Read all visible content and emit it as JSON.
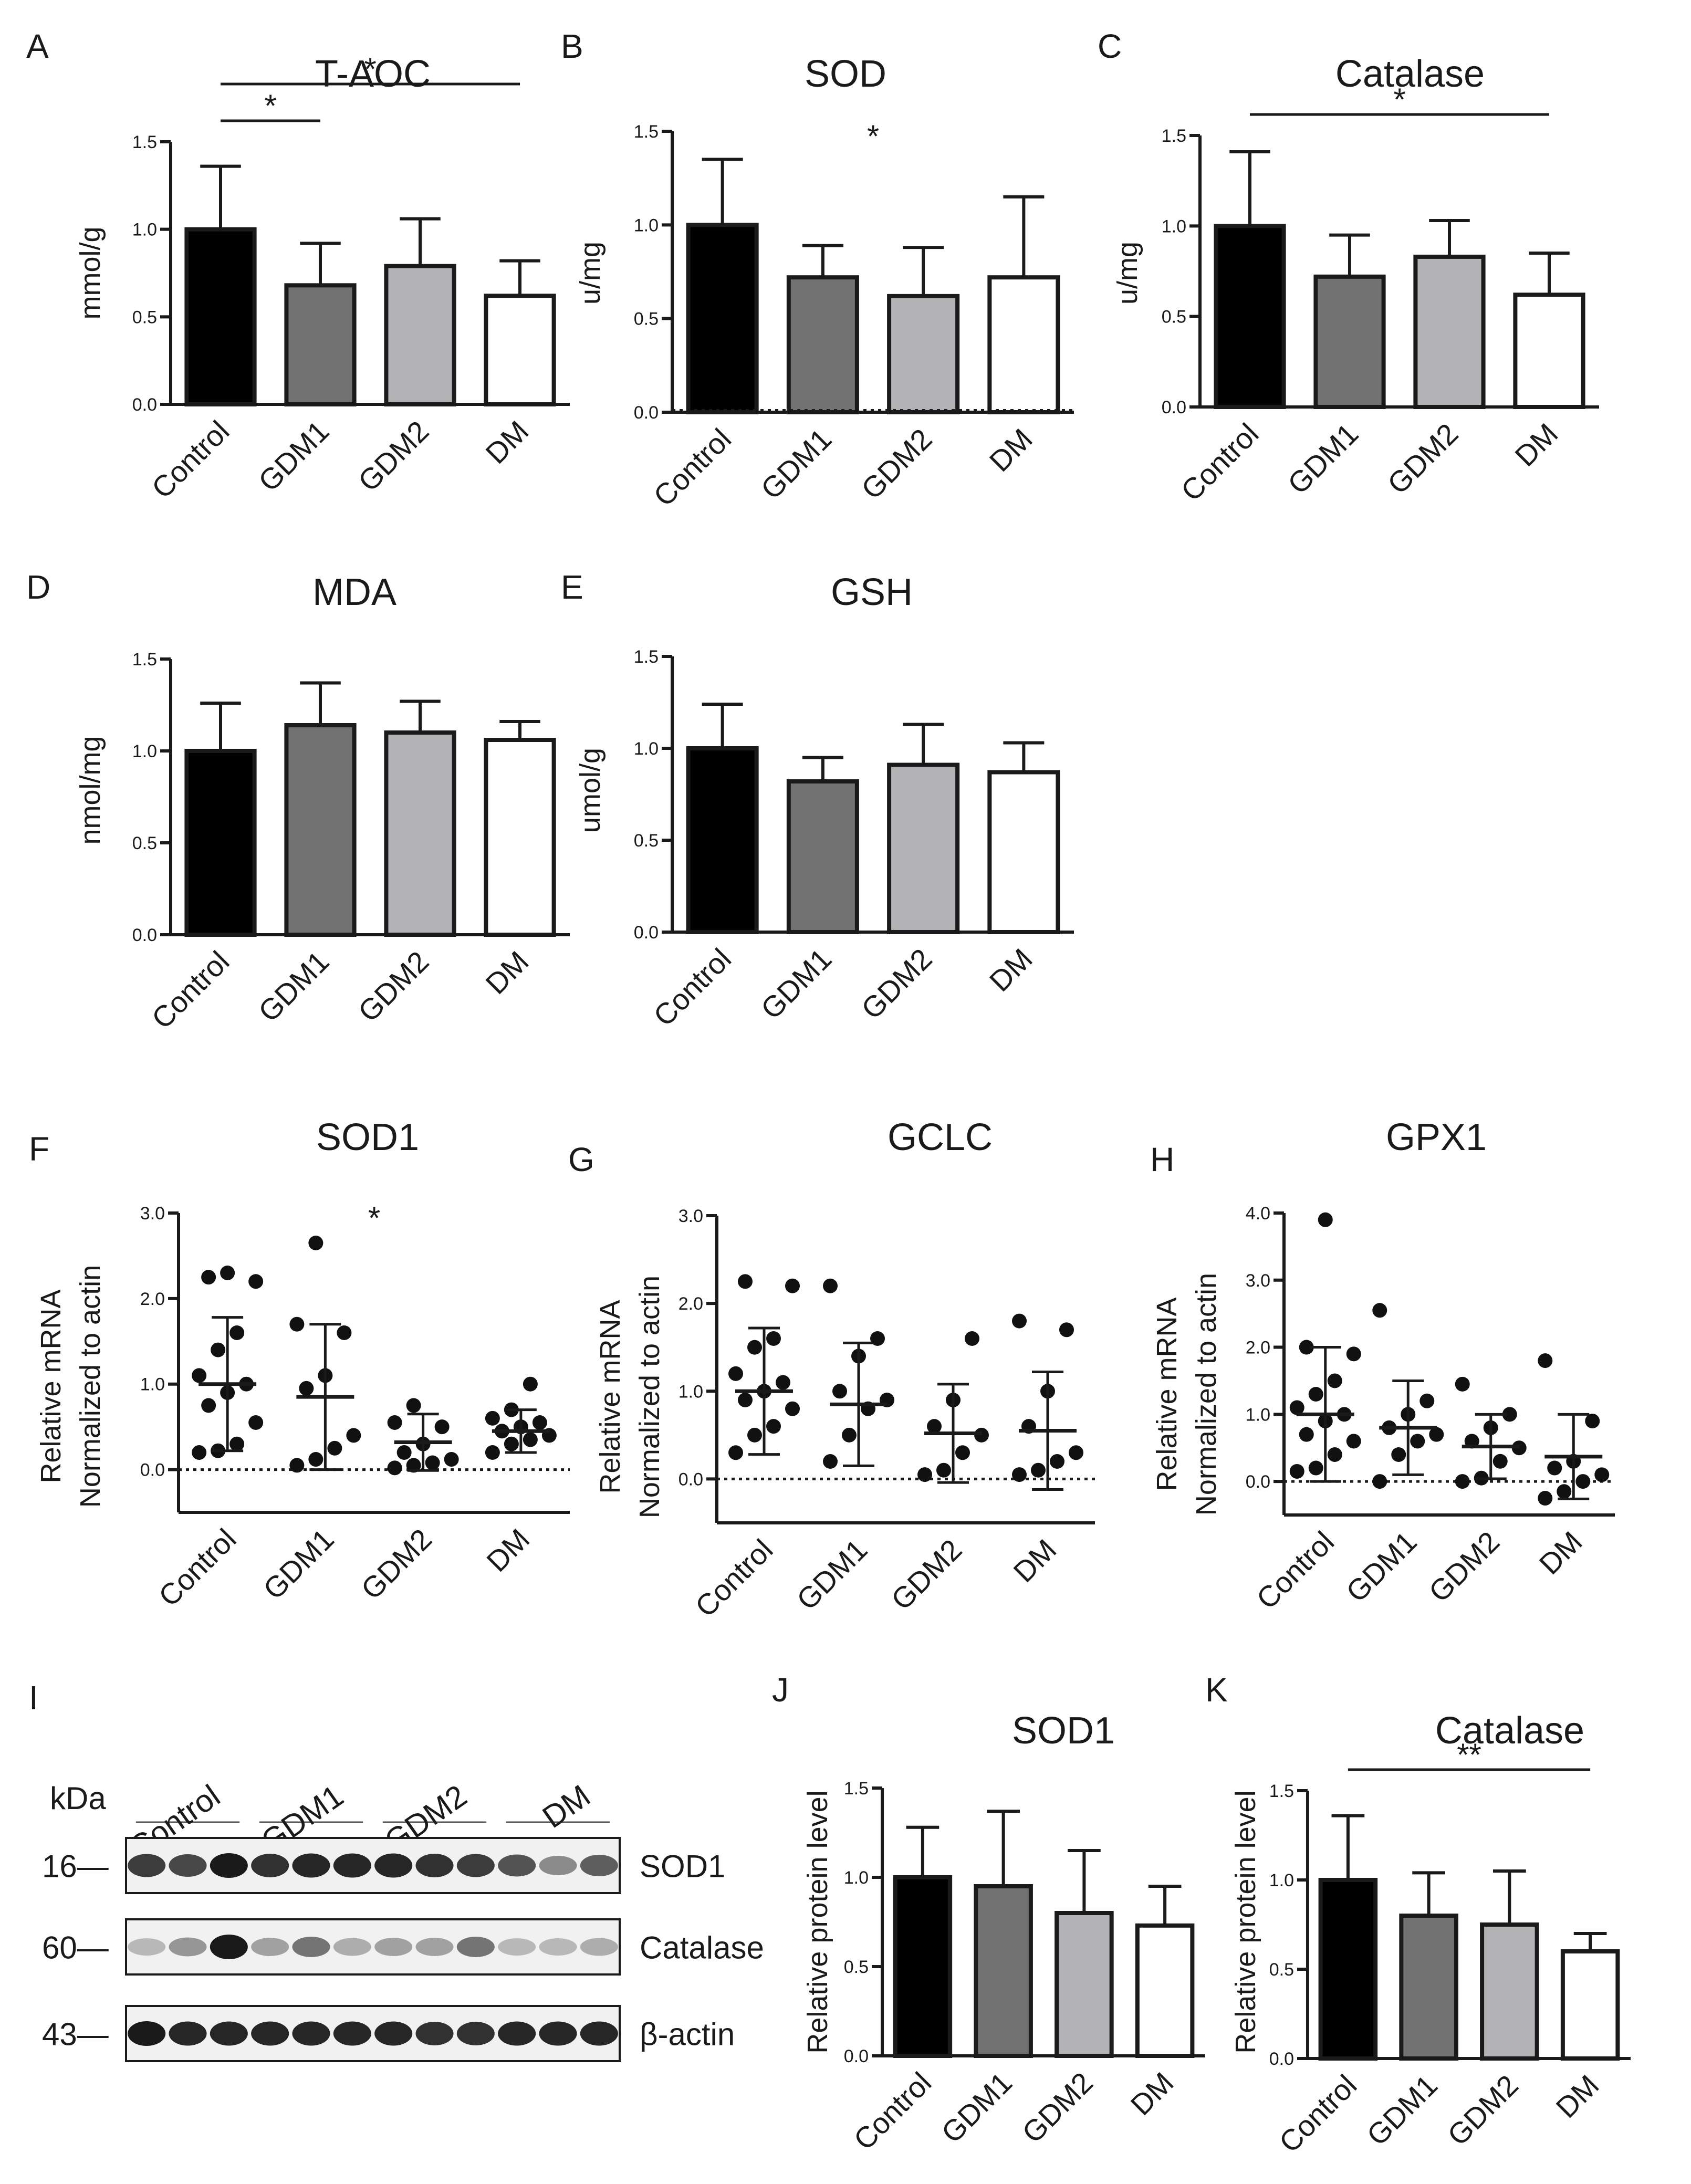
{
  "chart_data": [
    {
      "id": "A",
      "type": "bar",
      "panel_label": "A",
      "title": "T-AOC",
      "ylabel": "mmol/g",
      "categories": [
        "Control",
        "GDM1",
        "GDM2",
        "DM"
      ],
      "values": [
        1.0,
        0.68,
        0.79,
        0.62
      ],
      "errors": [
        0.36,
        0.24,
        0.27,
        0.2
      ],
      "ylim": [
        0,
        1.5
      ],
      "yticks": [
        "0.0",
        "0.5",
        "1.0",
        "1.5"
      ],
      "colors": [
        "#000000",
        "#727272",
        "#b3b3b6",
        "#ffffff"
      ],
      "significance": [
        {
          "from": 0,
          "to": 1,
          "label": "*"
        },
        {
          "from": 0,
          "to": 3,
          "label": "*"
        }
      ]
    },
    {
      "id": "B",
      "type": "bar",
      "panel_label": "B",
      "title": "SOD",
      "ylabel": "u/mg",
      "categories": [
        "Control",
        "GDM1",
        "GDM2",
        "DM"
      ],
      "values": [
        1.0,
        0.72,
        0.62,
        0.72
      ],
      "errors": [
        0.35,
        0.17,
        0.26,
        0.43
      ],
      "ylim": [
        0,
        1.5
      ],
      "yticks": [
        "0.0",
        "0.5",
        "1.0",
        "1.5"
      ],
      "colors": [
        "#000000",
        "#727272",
        "#b3b3b6",
        "#ffffff"
      ],
      "significance": [
        {
          "label": "*",
          "at": 1.5
        }
      ]
    },
    {
      "id": "C",
      "type": "bar",
      "panel_label": "C",
      "title": "Catalase",
      "ylabel": "u/mg",
      "categories": [
        "Control",
        "GDM1",
        "GDM2",
        "DM"
      ],
      "values": [
        1.0,
        0.72,
        0.83,
        0.62
      ],
      "errors": [
        0.41,
        0.23,
        0.2,
        0.23
      ],
      "ylim": [
        0,
        1.5
      ],
      "yticks": [
        "0.0",
        "0.5",
        "1.0",
        "1.5"
      ],
      "colors": [
        "#000000",
        "#727272",
        "#b3b3b6",
        "#ffffff"
      ],
      "significance": [
        {
          "from": 0,
          "to": 3,
          "label": "*"
        }
      ]
    },
    {
      "id": "D",
      "type": "bar",
      "panel_label": "D",
      "title": "MDA",
      "ylabel": "nmol/mg",
      "categories": [
        "Control",
        "GDM1",
        "GDM2",
        "DM"
      ],
      "values": [
        1.0,
        1.14,
        1.1,
        1.06
      ],
      "errors": [
        0.26,
        0.23,
        0.17,
        0.1
      ],
      "ylim": [
        0,
        1.5
      ],
      "yticks": [
        "0.0",
        "0.5",
        "1.0",
        "1.5"
      ],
      "colors": [
        "#000000",
        "#727272",
        "#b3b3b6",
        "#ffffff"
      ],
      "significance": []
    },
    {
      "id": "E",
      "type": "bar",
      "panel_label": "E",
      "title": "GSH",
      "ylabel": "umol/g",
      "categories": [
        "Control",
        "GDM1",
        "GDM2",
        "DM"
      ],
      "values": [
        1.0,
        0.82,
        0.91,
        0.87
      ],
      "errors": [
        0.24,
        0.13,
        0.22,
        0.16
      ],
      "ylim": [
        0,
        1.5
      ],
      "yticks": [
        "0.0",
        "0.5",
        "1.0",
        "1.5"
      ],
      "colors": [
        "#000000",
        "#727272",
        "#b3b3b6",
        "#ffffff"
      ],
      "significance": []
    },
    {
      "id": "F",
      "type": "scatter",
      "panel_label": "F",
      "title": "SOD1",
      "ylabel": [
        "Relative mRNA",
        "Normalized to actin"
      ],
      "categories": [
        "Control",
        "GDM1",
        "GDM2",
        "DM"
      ],
      "ylim": [
        -0.5,
        3.0
      ],
      "yticks": [
        "0.0",
        "1.0",
        "2.0",
        "3.0"
      ],
      "points": [
        [
          0.2,
          0.22,
          0.3,
          0.55,
          0.75,
          0.9,
          1.0,
          1.1,
          1.4,
          1.6,
          2.2,
          2.25,
          2.3
        ],
        [
          0.05,
          0.12,
          0.25,
          0.4,
          0.95,
          1.1,
          1.6,
          1.7,
          2.65
        ],
        [
          0.02,
          0.05,
          0.08,
          0.12,
          0.2,
          0.3,
          0.5,
          0.55,
          0.75
        ],
        [
          0.2,
          0.3,
          0.35,
          0.4,
          0.45,
          0.5,
          0.55,
          0.6,
          0.7,
          1.0
        ]
      ],
      "mean": [
        1.0,
        0.85,
        0.32,
        0.45
      ],
      "sd": [
        0.78,
        0.85,
        0.33,
        0.25
      ],
      "significance": [
        {
          "label": "*",
          "at": 1.5
        }
      ]
    },
    {
      "id": "G",
      "type": "scatter",
      "panel_label": "G",
      "title": "GCLC",
      "ylabel": [
        "Relative mRNA",
        "Normalized to actin"
      ],
      "categories": [
        "Control",
        "GDM1",
        "GDM2",
        "DM"
      ],
      "ylim": [
        -0.5,
        3.0
      ],
      "yticks": [
        "0.0",
        "1.0",
        "2.0",
        "3.0"
      ],
      "points": [
        [
          0.3,
          0.5,
          0.6,
          0.8,
          0.9,
          1.0,
          1.1,
          1.2,
          1.5,
          1.6,
          2.2,
          2.25
        ],
        [
          0.2,
          0.5,
          0.8,
          0.9,
          1.0,
          1.4,
          1.6,
          2.2
        ],
        [
          0.05,
          0.1,
          0.3,
          0.5,
          0.6,
          0.9,
          1.6
        ],
        [
          0.05,
          0.1,
          0.2,
          0.3,
          0.6,
          1.0,
          1.7,
          1.8
        ]
      ],
      "mean": [
        1.0,
        0.85,
        0.52,
        0.55
      ],
      "sd": [
        0.72,
        0.7,
        0.56,
        0.67
      ],
      "significance": []
    },
    {
      "id": "H",
      "type": "scatter",
      "panel_label": "H",
      "title": "GPX1",
      "ylabel": [
        "Relative mRNA",
        "Normalized to actin"
      ],
      "categories": [
        "Control",
        "GDM1",
        "GDM2",
        "DM"
      ],
      "ylim": [
        -0.5,
        4.0
      ],
      "yticks": [
        "0.0",
        "1.0",
        "2.0",
        "3.0",
        "4.0"
      ],
      "points": [
        [
          0.15,
          0.2,
          0.4,
          0.6,
          0.7,
          0.9,
          1.0,
          1.1,
          1.3,
          1.5,
          1.9,
          2.0,
          3.9
        ],
        [
          0.0,
          0.4,
          0.6,
          0.7,
          0.8,
          1.0,
          1.2,
          2.55
        ],
        [
          0.0,
          0.05,
          0.3,
          0.5,
          0.6,
          0.8,
          1.0,
          1.45
        ],
        [
          -0.25,
          -0.15,
          0.0,
          0.1,
          0.2,
          0.3,
          0.9,
          1.8
        ]
      ],
      "mean": [
        1.0,
        0.8,
        0.52,
        0.37
      ],
      "sd": [
        1.0,
        0.7,
        0.48,
        0.63
      ],
      "significance": []
    },
    {
      "id": "J",
      "type": "bar",
      "panel_label": "J",
      "title": "SOD1",
      "ylabel": "Relative protein level",
      "categories": [
        "Control",
        "GDM1",
        "GDM2",
        "DM"
      ],
      "values": [
        1.0,
        0.95,
        0.8,
        0.73
      ],
      "errors": [
        0.28,
        0.42,
        0.35,
        0.22
      ],
      "ylim": [
        0,
        1.5
      ],
      "yticks": [
        "0.0",
        "0.5",
        "1.0",
        "1.5"
      ],
      "colors": [
        "#000000",
        "#727272",
        "#b3b3b6",
        "#ffffff"
      ],
      "significance": []
    },
    {
      "id": "K",
      "type": "bar",
      "panel_label": "K",
      "title": "Catalase",
      "ylabel": "Relative protein level",
      "categories": [
        "Control",
        "GDM1",
        "GDM2",
        "DM"
      ],
      "values": [
        1.0,
        0.8,
        0.75,
        0.6
      ],
      "errors": [
        0.36,
        0.24,
        0.3,
        0.1
      ],
      "ylim": [
        0,
        1.5
      ],
      "yticks": [
        "0.0",
        "0.5",
        "1.0",
        "1.5"
      ],
      "colors": [
        "#000000",
        "#727272",
        "#b3b3b6",
        "#ffffff"
      ],
      "significance": [
        {
          "from": 0,
          "to": 3,
          "label": "**"
        }
      ]
    }
  ],
  "western_blot": {
    "panel_label": "I",
    "kda_label": "kDa",
    "groups": [
      "Control",
      "GDM1",
      "GDM2",
      "DM"
    ],
    "lanes_per_group": 3,
    "rows": [
      {
        "label": "SOD1",
        "kda": "16—",
        "intensity": [
          0.8,
          0.75,
          0.95,
          0.85,
          0.9,
          0.9,
          0.9,
          0.85,
          0.8,
          0.7,
          0.45,
          0.65
        ]
      },
      {
        "label": "Catalase",
        "kda": "60—",
        "intensity": [
          0.25,
          0.4,
          0.95,
          0.35,
          0.55,
          0.3,
          0.35,
          0.35,
          0.55,
          0.25,
          0.25,
          0.3
        ]
      },
      {
        "label": "β-actin",
        "kda": "43—",
        "intensity": [
          0.95,
          0.9,
          0.9,
          0.9,
          0.9,
          0.9,
          0.9,
          0.85,
          0.85,
          0.9,
          0.9,
          0.9
        ]
      }
    ]
  }
}
